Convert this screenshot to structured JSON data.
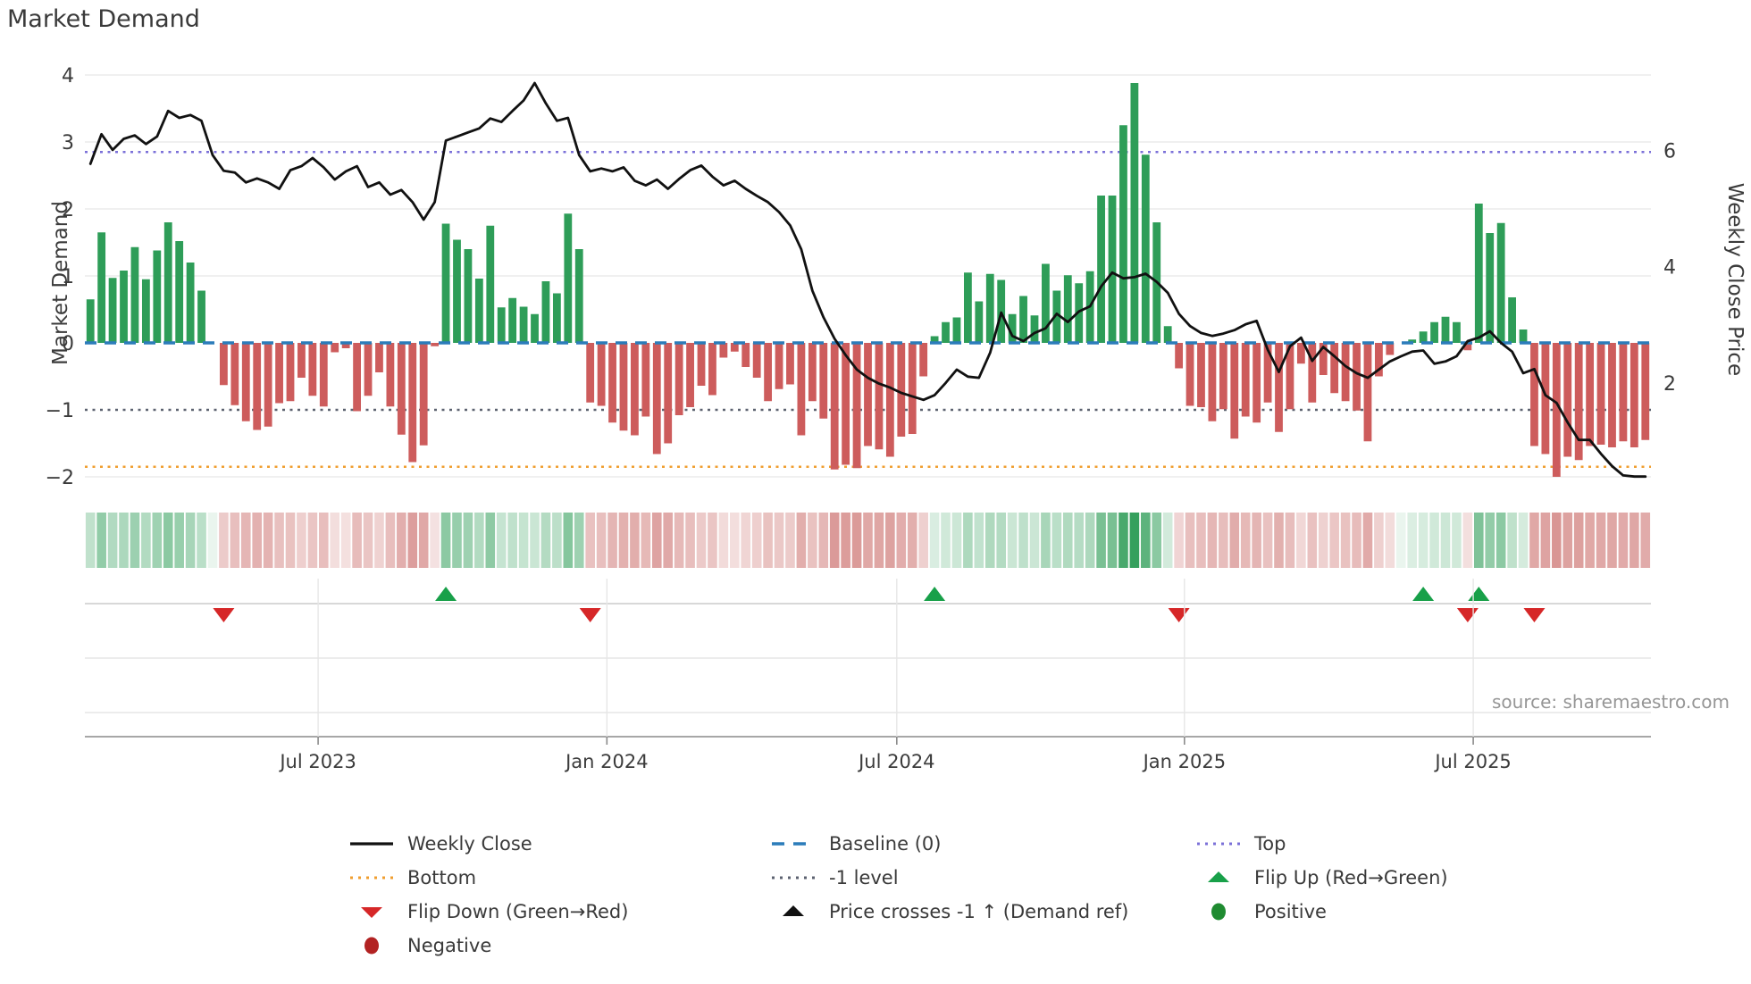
{
  "title": "Market Demand",
  "source_text": "source: sharemaestro.com",
  "axes": {
    "left_label": "Market Demand",
    "right_label": "Weekly Close Price",
    "left_ticks": [
      "4",
      "3",
      "2",
      "1",
      "0",
      "−1",
      "−2"
    ],
    "left_tick_values": [
      4,
      3,
      2,
      1,
      0,
      -1,
      -2
    ],
    "right_ticks": [
      "6",
      "4",
      "2"
    ],
    "right_tick_values": [
      6,
      4,
      2
    ],
    "x_ticks": [
      {
        "label": "Jul 2023",
        "week": 20.5
      },
      {
        "label": "Jan 2024",
        "week": 46.5
      },
      {
        "label": "Jul 2024",
        "week": 72.6
      },
      {
        "label": "Jan 2025",
        "week": 98.5
      },
      {
        "label": "Jul 2025",
        "week": 124.5
      }
    ]
  },
  "levels": {
    "baseline": {
      "label": "Baseline (0)",
      "value": 0,
      "color": "#2b7cba"
    },
    "top": {
      "label": "Top",
      "value": 2.85,
      "color": "#7b70d8"
    },
    "bottom": {
      "label": "Bottom",
      "value": -1.85,
      "color": "#f09e2f"
    },
    "minus_one": {
      "label": "-1 level",
      "value": -1,
      "color": "#5c6270"
    }
  },
  "colors": {
    "bar_positive": "#2e9d58",
    "bar_negative": "#cd5c5c",
    "line": "#111111",
    "flip_up": "#18a049",
    "flip_down": "#d62728",
    "positive_dot": "#1f8b31",
    "negative_dot": "#b22222",
    "grid": "#ececec",
    "marker_lane_line": "#cccccc",
    "bottom_axis": "#8a8a8a",
    "tick_text": "#3b3b3b"
  },
  "legend": {
    "items": [
      {
        "id": "weekly-close",
        "label": "Weekly Close",
        "swatch": "line",
        "color": "#111111",
        "col": 0,
        "row": 0
      },
      {
        "id": "baseline",
        "label": "Baseline (0)",
        "swatch": "dashes",
        "color": "#2b7cba",
        "col": 1,
        "row": 0
      },
      {
        "id": "top",
        "label": "Top",
        "swatch": "dots",
        "color": "#7b70d8",
        "col": 2,
        "row": 0
      },
      {
        "id": "bottom",
        "label": "Bottom",
        "swatch": "dots",
        "color": "#f09e2f",
        "col": 0,
        "row": 1
      },
      {
        "id": "minus-one-level",
        "label": "-1 level",
        "swatch": "dots",
        "color": "#5c6270",
        "col": 1,
        "row": 1
      },
      {
        "id": "flip-up",
        "label": "Flip Up (Red→Green)",
        "swatch": "tri-up",
        "color": "#18a049",
        "col": 2,
        "row": 1
      },
      {
        "id": "flip-down",
        "label": "Flip Down (Green→Red)",
        "swatch": "tri-down",
        "color": "#d62728",
        "col": 0,
        "row": 2
      },
      {
        "id": "price-cross",
        "label": "Price crosses -1 ↑ (Demand ref)",
        "swatch": "tri-up",
        "color": "#111111",
        "col": 1,
        "row": 2
      },
      {
        "id": "positive",
        "label": "Positive",
        "swatch": "circle",
        "color": "#1f8b31",
        "col": 2,
        "row": 2
      },
      {
        "id": "negative",
        "label": "Negative",
        "swatch": "circle",
        "color": "#b22222",
        "col": 0,
        "row": 3
      }
    ]
  },
  "chart_data": {
    "type": "bar",
    "subtype": "combo-bar-line-heatmap",
    "n_weeks": 141,
    "x_range_note": "weekly data, Apr 2023 - Oct 2025",
    "ylim_left": [
      -2.3,
      4.15
    ],
    "right_axis_ticks": [
      2,
      4,
      6
    ],
    "grid": "horizontal-light",
    "legend_position": "bottom",
    "series": [
      {
        "name": "Market Demand",
        "type": "bar",
        "axis": "left",
        "values": [
          0.65,
          1.65,
          0.97,
          1.08,
          1.43,
          0.95,
          1.38,
          1.8,
          1.52,
          1.2,
          0.78,
          0.0,
          -0.63,
          -0.93,
          -1.17,
          -1.3,
          -1.25,
          -0.9,
          -0.87,
          -0.52,
          -0.79,
          -0.95,
          -0.14,
          -0.08,
          -1.02,
          -0.79,
          -0.44,
          -0.95,
          -1.37,
          -1.78,
          -1.53,
          -0.05,
          1.78,
          1.54,
          1.4,
          0.96,
          1.75,
          0.53,
          0.67,
          0.54,
          0.43,
          0.92,
          0.74,
          1.93,
          1.4,
          -0.89,
          -0.94,
          -1.19,
          -1.31,
          -1.38,
          -1.1,
          -1.66,
          -1.5,
          -1.08,
          -0.96,
          -0.64,
          -0.78,
          -0.22,
          -0.13,
          -0.36,
          -0.52,
          -0.87,
          -0.69,
          -0.62,
          -1.38,
          -0.87,
          -1.13,
          -1.89,
          -1.82,
          -1.87,
          -1.54,
          -1.59,
          -1.7,
          -1.4,
          -1.36,
          -0.5,
          0.1,
          0.31,
          0.38,
          1.05,
          0.62,
          1.03,
          0.94,
          0.43,
          0.7,
          0.41,
          1.18,
          0.78,
          1.01,
          0.89,
          1.07,
          2.2,
          2.2,
          3.25,
          3.88,
          2.81,
          1.8,
          0.25,
          -0.38,
          -0.94,
          -0.96,
          -1.17,
          -0.99,
          -1.43,
          -1.1,
          -1.19,
          -0.89,
          -1.33,
          -0.99,
          -0.31,
          -0.89,
          -0.48,
          -0.75,
          -0.87,
          -1.01,
          -1.47,
          -0.5,
          -0.18,
          0.0,
          0.05,
          0.17,
          0.31,
          0.39,
          0.31,
          -0.11,
          2.08,
          1.64,
          1.79,
          0.68,
          0.2,
          -1.54,
          -1.66,
          -2.0,
          -1.7,
          -1.75,
          -1.54,
          -1.52,
          -1.56,
          -1.47,
          -1.56,
          -1.45
        ]
      },
      {
        "name": "Weekly Close",
        "type": "line",
        "axis": "right",
        "values": [
          5.77,
          6.28,
          6.01,
          6.2,
          6.26,
          6.11,
          6.24,
          6.68,
          6.56,
          6.61,
          6.51,
          5.92,
          5.65,
          5.62,
          5.45,
          5.52,
          5.45,
          5.34,
          5.66,
          5.73,
          5.87,
          5.71,
          5.5,
          5.64,
          5.73,
          5.37,
          5.45,
          5.24,
          5.32,
          5.11,
          4.81,
          5.11,
          6.17,
          6.24,
          6.31,
          6.38,
          6.55,
          6.49,
          6.68,
          6.86,
          7.16,
          6.81,
          6.51,
          6.56,
          5.92,
          5.64,
          5.69,
          5.64,
          5.71,
          5.48,
          5.4,
          5.5,
          5.34,
          5.51,
          5.66,
          5.74,
          5.55,
          5.4,
          5.48,
          5.34,
          5.22,
          5.11,
          4.94,
          4.71,
          4.3,
          3.59,
          3.13,
          2.76,
          2.48,
          2.23,
          2.09,
          1.99,
          1.92,
          1.83,
          1.77,
          1.71,
          1.79,
          2.0,
          2.23,
          2.11,
          2.09,
          2.52,
          3.21,
          2.81,
          2.72,
          2.86,
          2.94,
          3.19,
          3.05,
          3.23,
          3.32,
          3.66,
          3.9,
          3.8,
          3.82,
          3.88,
          3.74,
          3.55,
          3.19,
          2.98,
          2.86,
          2.81,
          2.85,
          2.91,
          3.01,
          3.07,
          2.57,
          2.19,
          2.63,
          2.78,
          2.38,
          2.62,
          2.46,
          2.29,
          2.17,
          2.09,
          2.23,
          2.37,
          2.46,
          2.54,
          2.56,
          2.33,
          2.37,
          2.46,
          2.72,
          2.78,
          2.89,
          2.69,
          2.54,
          2.17,
          2.24,
          1.79,
          1.66,
          1.32,
          1.02,
          1.02,
          0.78,
          0.57,
          0.41,
          0.39,
          0.39
        ]
      }
    ],
    "heatmap_strip": "green/red cells, shade intensity proportional to |Market Demand| per week",
    "markers": {
      "flip_up_weeks": [
        32,
        76,
        120,
        125
      ],
      "flip_down_weeks": [
        12,
        45,
        98,
        124,
        130
      ],
      "price_cross_weeks": []
    }
  }
}
